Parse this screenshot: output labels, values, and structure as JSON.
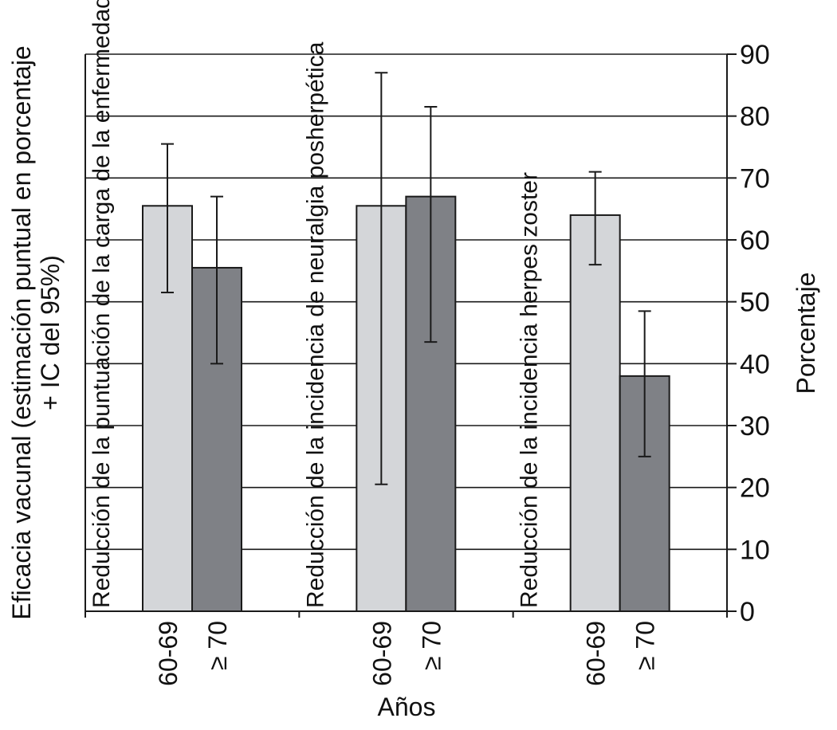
{
  "chart_data": {
    "type": "bar",
    "ylabel_left_lines": [
      "Eficacia vacunal (estimación puntual en porcentaje",
      "+ IC del 95%)"
    ],
    "ylabel_right": "Porcentaje",
    "xlabel": "Años",
    "ylim": [
      0,
      90
    ],
    "yticks": [
      "0",
      "10",
      "20",
      "30",
      "40",
      "50",
      "60",
      "70",
      "80",
      "90"
    ],
    "grid": true,
    "groups": [
      {
        "label": "Reducción de la puntuación de la carga de la enfermedad",
        "bars": [
          {
            "category": "60-69",
            "value": 65.5,
            "ci_low": 51.5,
            "ci_high": 75.5,
            "color": "#d4d6d9"
          },
          {
            "category": "≥ 70",
            "value": 55.5,
            "ci_low": 40.0,
            "ci_high": 67.0,
            "color": "#7f8186"
          }
        ]
      },
      {
        "label": "Reducción de la incidencia de neuralgia posherpética",
        "bars": [
          {
            "category": "60-69",
            "value": 65.5,
            "ci_low": 20.5,
            "ci_high": 87.0,
            "color": "#d4d6d9"
          },
          {
            "category": "≥ 70",
            "value": 67.0,
            "ci_low": 43.5,
            "ci_high": 81.5,
            "color": "#7f8186"
          }
        ]
      },
      {
        "label": "Reducción de la incidencia herpes zoster",
        "bars": [
          {
            "category": "60-69",
            "value": 64.0,
            "ci_low": 56.0,
            "ci_high": 71.0,
            "color": "#d4d6d9"
          },
          {
            "category": "≥ 70",
            "value": 38.0,
            "ci_low": 25.0,
            "ci_high": 48.5,
            "color": "#7f8186"
          }
        ]
      }
    ]
  }
}
